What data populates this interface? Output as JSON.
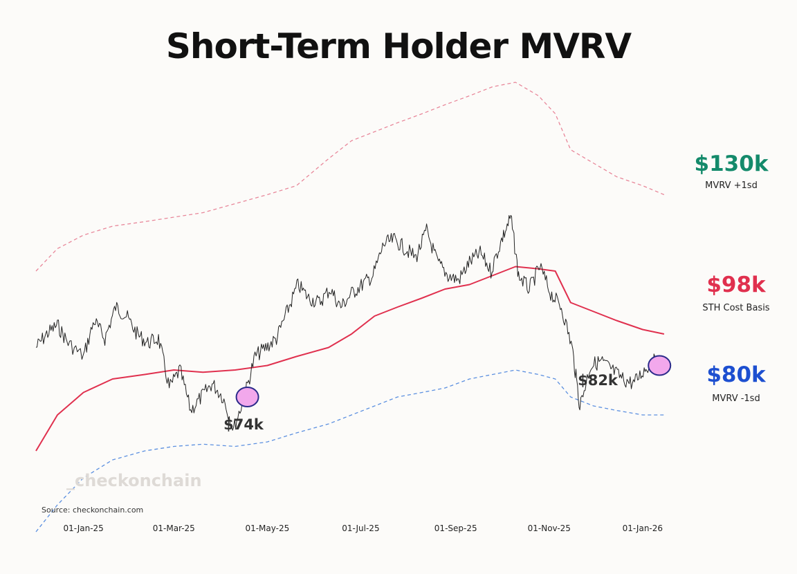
{
  "title": "Short-Term Holder MVRV",
  "source": "Source: checkonchain.com",
  "watermark": "_checkonchain",
  "colors": {
    "upper_band": "#e8879a",
    "cost_basis": "#e0304e",
    "lower_band": "#5b8fe0",
    "price": "#222222",
    "upper_label": "#148a6b",
    "cost_label": "#e0304e",
    "lower_label": "#1d4fd0",
    "circle_fill": "#f2a8ec",
    "circle_stroke": "#2a2a8a"
  },
  "labels": {
    "upper_value": "$130k",
    "upper_name": "MVRV +1sd",
    "cost_value": "$98k",
    "cost_name": "STH Cost Basis",
    "lower_value": "$80k",
    "lower_name": "MVRV -1sd"
  },
  "annotations": [
    "$74k",
    "$82k"
  ],
  "chart_data": {
    "type": "line",
    "title": "Short-Term Holder MVRV",
    "x_tick_labels": [
      "01-Jan-25",
      "01-Mar-25",
      "01-May-25",
      "01-Jul-25",
      "01-Sep-25",
      "01-Nov-25",
      "01-Jan-26"
    ],
    "x_range": [
      "2024-12-01",
      "2026-01-25"
    ],
    "y_range": [
      60,
      160
    ],
    "grid": false,
    "series": [
      {
        "name": "MVRV +1sd",
        "style": "dashed",
        "points": [
          [
            "2024-12-01",
            112
          ],
          [
            "2024-12-15",
            117
          ],
          [
            "2025-01-01",
            120
          ],
          [
            "2025-01-20",
            122
          ],
          [
            "2025-02-10",
            123
          ],
          [
            "2025-03-01",
            124
          ],
          [
            "2025-03-20",
            125
          ],
          [
            "2025-04-10",
            127
          ],
          [
            "2025-05-01",
            129
          ],
          [
            "2025-05-20",
            131
          ],
          [
            "2025-06-10",
            137
          ],
          [
            "2025-06-25",
            141
          ],
          [
            "2025-07-10",
            143
          ],
          [
            "2025-07-25",
            145
          ],
          [
            "2025-08-10",
            147
          ],
          [
            "2025-08-25",
            149
          ],
          [
            "2025-09-10",
            151
          ],
          [
            "2025-09-25",
            153
          ],
          [
            "2025-10-10",
            154
          ],
          [
            "2025-10-25",
            151
          ],
          [
            "2025-11-05",
            147
          ],
          [
            "2025-11-15",
            139
          ],
          [
            "2025-11-30",
            136
          ],
          [
            "2025-12-15",
            133
          ],
          [
            "2026-01-01",
            131
          ],
          [
            "2026-01-15",
            129
          ]
        ]
      },
      {
        "name": "STH Cost Basis",
        "style": "solid",
        "points": [
          [
            "2024-12-01",
            72
          ],
          [
            "2024-12-15",
            80
          ],
          [
            "2025-01-01",
            85
          ],
          [
            "2025-01-20",
            88
          ],
          [
            "2025-02-10",
            89
          ],
          [
            "2025-03-01",
            90
          ],
          [
            "2025-03-20",
            89.5
          ],
          [
            "2025-04-10",
            90
          ],
          [
            "2025-05-01",
            91
          ],
          [
            "2025-05-20",
            93
          ],
          [
            "2025-06-10",
            95
          ],
          [
            "2025-06-25",
            98
          ],
          [
            "2025-07-10",
            102
          ],
          [
            "2025-07-25",
            104
          ],
          [
            "2025-08-10",
            106
          ],
          [
            "2025-08-25",
            108
          ],
          [
            "2025-09-10",
            109
          ],
          [
            "2025-09-25",
            111
          ],
          [
            "2025-10-10",
            113
          ],
          [
            "2025-10-25",
            112.5
          ],
          [
            "2025-11-05",
            112
          ],
          [
            "2025-11-15",
            105
          ],
          [
            "2025-11-30",
            103
          ],
          [
            "2025-12-15",
            101
          ],
          [
            "2026-01-01",
            99
          ],
          [
            "2026-01-15",
            98
          ]
        ]
      },
      {
        "name": "MVRV -1sd",
        "style": "dashed",
        "points": [
          [
            "2024-12-01",
            54
          ],
          [
            "2024-12-15",
            60
          ],
          [
            "2025-01-01",
            66
          ],
          [
            "2025-01-20",
            70
          ],
          [
            "2025-02-10",
            72
          ],
          [
            "2025-03-01",
            73
          ],
          [
            "2025-03-20",
            73.5
          ],
          [
            "2025-04-10",
            73
          ],
          [
            "2025-05-01",
            74
          ],
          [
            "2025-05-20",
            76
          ],
          [
            "2025-06-10",
            78
          ],
          [
            "2025-06-25",
            80
          ],
          [
            "2025-07-10",
            82
          ],
          [
            "2025-07-25",
            84
          ],
          [
            "2025-08-10",
            85
          ],
          [
            "2025-08-25",
            86
          ],
          [
            "2025-09-10",
            88
          ],
          [
            "2025-09-25",
            89
          ],
          [
            "2025-10-10",
            90
          ],
          [
            "2025-10-25",
            89
          ],
          [
            "2025-11-05",
            88
          ],
          [
            "2025-11-15",
            84
          ],
          [
            "2025-11-30",
            82
          ],
          [
            "2025-12-15",
            81
          ],
          [
            "2026-01-01",
            80
          ],
          [
            "2026-01-15",
            80
          ]
        ]
      },
      {
        "name": "Price",
        "style": "solid",
        "points": [
          [
            "2024-12-01",
            95
          ],
          [
            "2024-12-08",
            98
          ],
          [
            "2024-12-15",
            100
          ],
          [
            "2024-12-22",
            96
          ],
          [
            "2025-01-01",
            93
          ],
          [
            "2025-01-08",
            101
          ],
          [
            "2025-01-15",
            97
          ],
          [
            "2025-01-22",
            104
          ],
          [
            "2025-01-29",
            102
          ],
          [
            "2025-02-05",
            98
          ],
          [
            "2025-02-12",
            96
          ],
          [
            "2025-02-19",
            97
          ],
          [
            "2025-02-26",
            86
          ],
          [
            "2025-03-05",
            90
          ],
          [
            "2025-03-12",
            81
          ],
          [
            "2025-03-19",
            84
          ],
          [
            "2025-03-26",
            87
          ],
          [
            "2025-04-02",
            84
          ],
          [
            "2025-04-09",
            77
          ],
          [
            "2025-04-16",
            84
          ],
          [
            "2025-04-23",
            93
          ],
          [
            "2025-04-30",
            95
          ],
          [
            "2025-05-07",
            97
          ],
          [
            "2025-05-14",
            103
          ],
          [
            "2025-05-21",
            109
          ],
          [
            "2025-05-28",
            106
          ],
          [
            "2025-06-04",
            105
          ],
          [
            "2025-06-11",
            108
          ],
          [
            "2025-06-18",
            104
          ],
          [
            "2025-06-25",
            107
          ],
          [
            "2025-07-02",
            109
          ],
          [
            "2025-07-09",
            111
          ],
          [
            "2025-07-16",
            118
          ],
          [
            "2025-07-23",
            119
          ],
          [
            "2025-07-30",
            117
          ],
          [
            "2025-08-06",
            115
          ],
          [
            "2025-08-13",
            121
          ],
          [
            "2025-08-20",
            114
          ],
          [
            "2025-08-27",
            111
          ],
          [
            "2025-09-03",
            110
          ],
          [
            "2025-09-10",
            114
          ],
          [
            "2025-09-17",
            116
          ],
          [
            "2025-09-24",
            112
          ],
          [
            "2025-10-01",
            119
          ],
          [
            "2025-10-07",
            124
          ],
          [
            "2025-10-12",
            111
          ],
          [
            "2025-10-19",
            108
          ],
          [
            "2025-10-26",
            113
          ],
          [
            "2025-11-02",
            107
          ],
          [
            "2025-11-09",
            104
          ],
          [
            "2025-11-16",
            95
          ],
          [
            "2025-11-21",
            82
          ],
          [
            "2025-11-28",
            91
          ],
          [
            "2025-12-05",
            92
          ],
          [
            "2025-12-12",
            90
          ],
          [
            "2025-12-19",
            88
          ],
          [
            "2025-12-26",
            87
          ],
          [
            "2026-01-02",
            90
          ],
          [
            "2026-01-08",
            92
          ],
          [
            "2026-01-12",
            91
          ]
        ]
      }
    ],
    "annotations": [
      {
        "date": "2025-04-09",
        "value": 74,
        "text": "$74k"
      },
      {
        "date": "2025-11-21",
        "value": 82,
        "text": "$82k"
      }
    ],
    "highlights": [
      {
        "date": "2025-04-18",
        "value": 84
      },
      {
        "date": "2026-01-12",
        "value": 91
      }
    ]
  }
}
